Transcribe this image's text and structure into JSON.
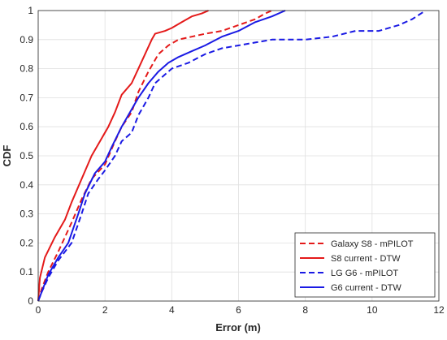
{
  "chart_data": {
    "type": "line",
    "title": "",
    "xlabel": "Error (m)",
    "ylabel": "CDF",
    "xlim": [
      0,
      12
    ],
    "ylim": [
      0,
      1
    ],
    "xticks": [
      "0",
      "2",
      "4",
      "6",
      "8",
      "10",
      "12"
    ],
    "yticks": [
      "0",
      "0.1",
      "0.2",
      "0.3",
      "0.4",
      "0.5",
      "0.6",
      "0.7",
      "0.8",
      "0.9",
      "1"
    ],
    "grid": true,
    "legend_position": "bottom-right",
    "series": [
      {
        "name": "Galaxy S8 - mPILOT",
        "color": "#e41a1a",
        "dash": "dashed",
        "points": [
          [
            0,
            0
          ],
          [
            0.1,
            0.04
          ],
          [
            0.3,
            0.1
          ],
          [
            0.6,
            0.17
          ],
          [
            1.0,
            0.27
          ],
          [
            1.3,
            0.35
          ],
          [
            1.6,
            0.42
          ],
          [
            2.0,
            0.47
          ],
          [
            2.3,
            0.55
          ],
          [
            2.5,
            0.6
          ],
          [
            2.8,
            0.65
          ],
          [
            3.0,
            0.72
          ],
          [
            3.3,
            0.79
          ],
          [
            3.6,
            0.85
          ],
          [
            3.9,
            0.88
          ],
          [
            4.2,
            0.9
          ],
          [
            4.6,
            0.91
          ],
          [
            5.0,
            0.92
          ],
          [
            5.5,
            0.93
          ],
          [
            6.0,
            0.95
          ],
          [
            6.5,
            0.97
          ],
          [
            6.8,
            0.99
          ],
          [
            7.0,
            1.0
          ]
        ]
      },
      {
        "name": "S8 current - DTW",
        "color": "#e41a1a",
        "dash": "solid",
        "points": [
          [
            0,
            0
          ],
          [
            0.05,
            0.08
          ],
          [
            0.2,
            0.15
          ],
          [
            0.5,
            0.22
          ],
          [
            0.8,
            0.28
          ],
          [
            1.0,
            0.34
          ],
          [
            1.3,
            0.42
          ],
          [
            1.6,
            0.5
          ],
          [
            1.9,
            0.56
          ],
          [
            2.1,
            0.6
          ],
          [
            2.3,
            0.65
          ],
          [
            2.5,
            0.71
          ],
          [
            2.8,
            0.75
          ],
          [
            3.0,
            0.8
          ],
          [
            3.2,
            0.85
          ],
          [
            3.4,
            0.9
          ],
          [
            3.5,
            0.92
          ],
          [
            3.8,
            0.93
          ],
          [
            4.0,
            0.94
          ],
          [
            4.3,
            0.96
          ],
          [
            4.6,
            0.98
          ],
          [
            4.9,
            0.99
          ],
          [
            5.1,
            1.0
          ]
        ]
      },
      {
        "name": "LG G6 - mPILOT",
        "color": "#1a1ae4",
        "dash": "dashed",
        "points": [
          [
            0,
            0
          ],
          [
            0.1,
            0.03
          ],
          [
            0.3,
            0.08
          ],
          [
            0.6,
            0.14
          ],
          [
            1.0,
            0.2
          ],
          [
            1.3,
            0.3
          ],
          [
            1.5,
            0.37
          ],
          [
            1.8,
            0.42
          ],
          [
            2.0,
            0.45
          ],
          [
            2.3,
            0.5
          ],
          [
            2.5,
            0.55
          ],
          [
            2.8,
            0.58
          ],
          [
            3.0,
            0.64
          ],
          [
            3.3,
            0.7
          ],
          [
            3.5,
            0.75
          ],
          [
            3.8,
            0.78
          ],
          [
            4.0,
            0.8
          ],
          [
            4.5,
            0.82
          ],
          [
            5.0,
            0.85
          ],
          [
            5.5,
            0.87
          ],
          [
            6.0,
            0.88
          ],
          [
            6.5,
            0.89
          ],
          [
            7.0,
            0.9
          ],
          [
            8.0,
            0.9
          ],
          [
            8.8,
            0.91
          ],
          [
            9.5,
            0.93
          ],
          [
            10.2,
            0.93
          ],
          [
            10.8,
            0.95
          ],
          [
            11.2,
            0.97
          ],
          [
            11.6,
            1.0
          ]
        ]
      },
      {
        "name": "G6 current - DTW",
        "color": "#1a1ae4",
        "dash": "solid",
        "points": [
          [
            0,
            0
          ],
          [
            0.1,
            0.03
          ],
          [
            0.3,
            0.09
          ],
          [
            0.6,
            0.15
          ],
          [
            0.9,
            0.2
          ],
          [
            1.2,
            0.3
          ],
          [
            1.4,
            0.37
          ],
          [
            1.7,
            0.44
          ],
          [
            2.0,
            0.48
          ],
          [
            2.2,
            0.53
          ],
          [
            2.5,
            0.6
          ],
          [
            2.8,
            0.66
          ],
          [
            3.0,
            0.7
          ],
          [
            3.3,
            0.75
          ],
          [
            3.6,
            0.79
          ],
          [
            3.9,
            0.82
          ],
          [
            4.2,
            0.84
          ],
          [
            4.6,
            0.86
          ],
          [
            5.0,
            0.88
          ],
          [
            5.5,
            0.91
          ],
          [
            6.0,
            0.93
          ],
          [
            6.5,
            0.96
          ],
          [
            7.0,
            0.98
          ],
          [
            7.4,
            1.0
          ]
        ]
      }
    ]
  }
}
